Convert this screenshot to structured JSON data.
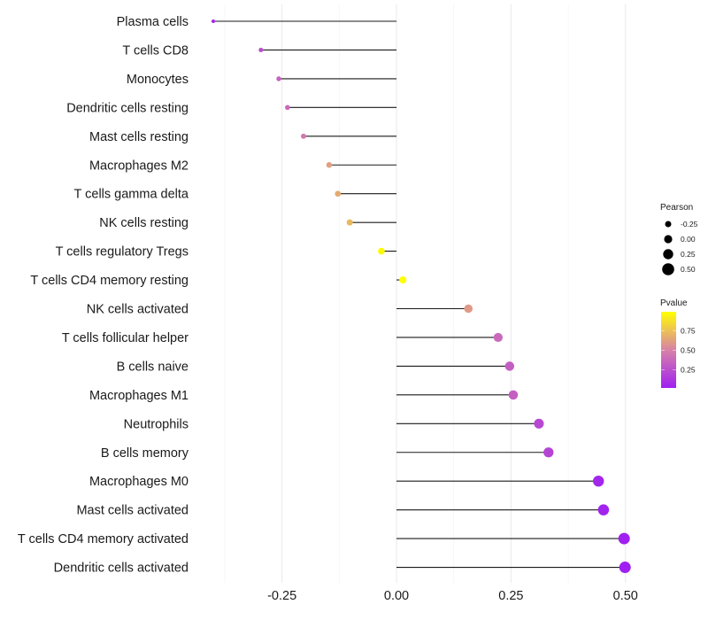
{
  "chart_data": {
    "type": "lollipop",
    "title": "",
    "xlabel": "",
    "ylabel": "",
    "xlim": [
      -0.42,
      0.52
    ],
    "x_ticks": [
      -0.25,
      0.0,
      0.25,
      0.5
    ],
    "x_tick_labels": [
      "-0.25",
      "0.00",
      "0.25",
      "0.50"
    ],
    "grid": true,
    "categories": [
      "Plasma cells",
      "T cells CD8",
      "Monocytes",
      "Dendritic cells resting",
      "Mast cells resting",
      "Macrophages M2",
      "T cells gamma delta",
      "NK cells resting",
      "T cells regulatory  Tregs",
      "T cells CD4 memory resting",
      "NK cells activated",
      "T cells follicular helper",
      "B cells naive",
      "Macrophages M1",
      "Neutrophils",
      "B cells memory",
      "Macrophages M0",
      "Mast cells activated",
      "T cells CD4 memory activated",
      "Dendritic cells activated"
    ],
    "pearson": [
      -0.4,
      -0.296,
      -0.257,
      -0.238,
      -0.203,
      -0.147,
      -0.128,
      -0.102,
      -0.033,
      0.014,
      0.157,
      0.222,
      0.247,
      0.255,
      0.311,
      0.332,
      0.441,
      0.452,
      0.497,
      0.499
    ],
    "pvalue": [
      0.05,
      0.25,
      0.35,
      0.38,
      0.45,
      0.62,
      0.66,
      0.72,
      0.97,
      0.99,
      0.6,
      0.38,
      0.33,
      0.33,
      0.22,
      0.2,
      0.05,
      0.04,
      0.02,
      0.02
    ],
    "legend_size": {
      "title": "Pearson",
      "values": [
        -0.25,
        0.0,
        0.25,
        0.5
      ],
      "labels": [
        "-0.25",
        "0.00",
        "0.25",
        "0.50"
      ],
      "position": "right"
    },
    "legend_color": {
      "title": "Pvalue",
      "range": [
        0.02,
        0.99
      ],
      "ticks": [
        0.25,
        0.5,
        0.75
      ],
      "tick_labels": [
        "0.25",
        "0.50",
        "0.75"
      ],
      "low_color": "#a020f0",
      "mid_color": "#d882a8",
      "high_color": "#ffff00",
      "position": "right"
    }
  }
}
